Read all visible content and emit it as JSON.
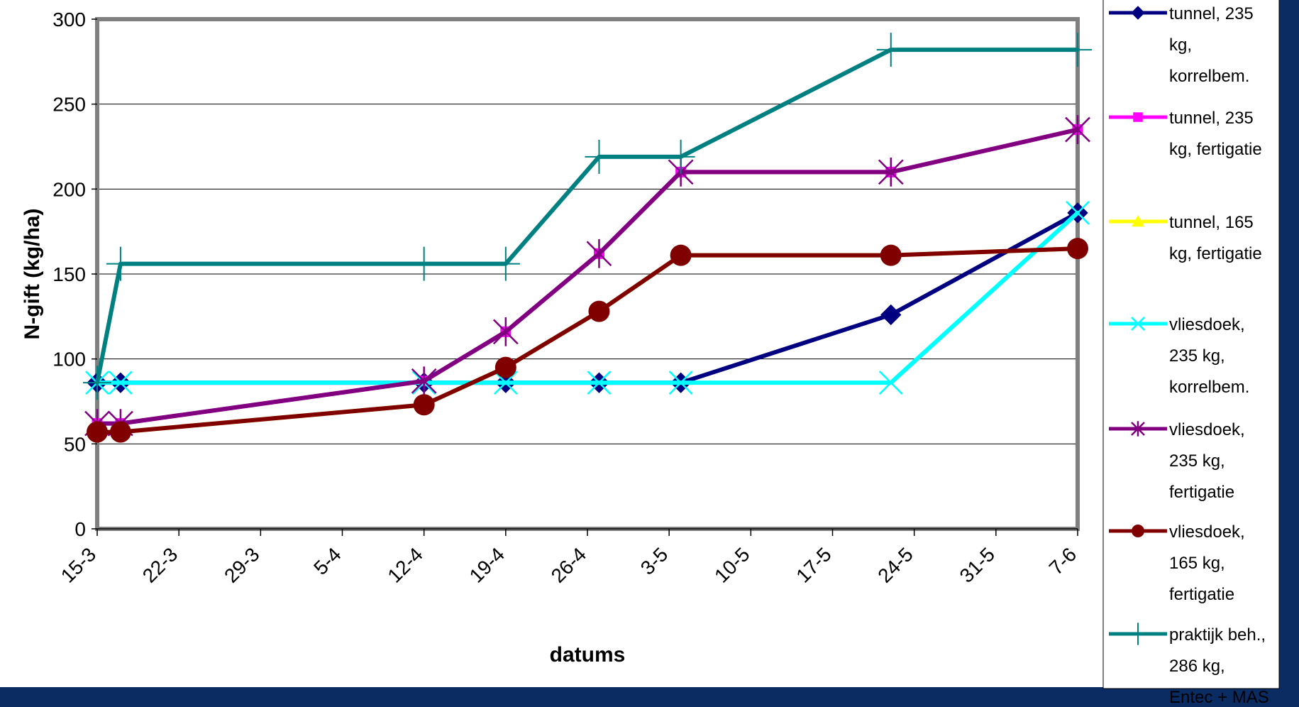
{
  "chart_data": {
    "type": "line",
    "xlabel": "datums",
    "ylabel": "N-gift (kg/ha)",
    "ylim": [
      0,
      300
    ],
    "yticks": [
      0,
      50,
      100,
      150,
      200,
      250,
      300
    ],
    "xlim": [
      "2003-03-15",
      "2003-06-07"
    ],
    "xtick_labels": [
      "15-3",
      "22-3",
      "29-3",
      "5-4",
      "12-4",
      "19-4",
      "26-4",
      "3-5",
      "10-5",
      "17-5",
      "24-5",
      "31-5",
      "7-6"
    ],
    "grid": "horizontal",
    "legend_position": "right",
    "series": [
      {
        "name": "tunnel, 235 kg, korrelbem.",
        "legend_lines": [
          "tunnel, 235",
          "kg,",
          "korrelbem."
        ],
        "color": "#000080",
        "marker": "diamond",
        "points": [
          [
            "15-3",
            86
          ],
          [
            "17-3",
            86
          ],
          [
            "12-4",
            86
          ],
          [
            "19-4",
            86
          ],
          [
            "27-4",
            86
          ],
          [
            "4-5",
            86
          ],
          [
            "22-5",
            126
          ],
          [
            "7-6",
            186
          ]
        ]
      },
      {
        "name": "tunnel, 235 kg, fertigatie",
        "legend_lines": [
          "tunnel, 235",
          "kg,  fertigatie"
        ],
        "color": "#FF00FF",
        "marker": "square",
        "points": [
          [
            "15-3",
            62
          ],
          [
            "17-3",
            62
          ],
          [
            "12-4",
            87
          ],
          [
            "19-4",
            116
          ],
          [
            "27-4",
            162
          ],
          [
            "4-5",
            210
          ],
          [
            "22-5",
            210
          ],
          [
            "7-6",
            235
          ]
        ]
      },
      {
        "name": "tunnel, 165 kg, fertigatie",
        "legend_lines": [
          "tunnel, 165",
          "kg,  fertigatie"
        ],
        "color": "#FFFF00",
        "marker": "triangle",
        "points": [
          [
            "15-3",
            57
          ],
          [
            "17-3",
            57
          ],
          [
            "12-4",
            73
          ],
          [
            "19-4",
            95
          ],
          [
            "27-4",
            128
          ],
          [
            "4-5",
            161
          ],
          [
            "22-5",
            161
          ],
          [
            "7-6",
            165
          ]
        ]
      },
      {
        "name": "vliesdoek, 235 kg, korrelbem.",
        "legend_lines": [
          "vliesdoek,",
          "235 kg,",
          "korrelbem."
        ],
        "color": "#00FFFF",
        "marker": "x",
        "points": [
          [
            "15-3",
            86
          ],
          [
            "17-3",
            86
          ],
          [
            "12-4",
            86
          ],
          [
            "19-4",
            86
          ],
          [
            "27-4",
            86
          ],
          [
            "4-5",
            86
          ],
          [
            "22-5",
            86
          ],
          [
            "7-6",
            186
          ]
        ]
      },
      {
        "name": "vliesdoek, 235 kg, fertigatie",
        "legend_lines": [
          "vliesdoek,",
          "235 kg,",
          "fertigatie"
        ],
        "color": "#800080",
        "marker": "star",
        "points": [
          [
            "15-3",
            62
          ],
          [
            "17-3",
            62
          ],
          [
            "12-4",
            87
          ],
          [
            "19-4",
            116
          ],
          [
            "27-4",
            162
          ],
          [
            "4-5",
            210
          ],
          [
            "22-5",
            210
          ],
          [
            "7-6",
            235
          ]
        ]
      },
      {
        "name": "vliesdoek, 165 kg, fertigatie",
        "legend_lines": [
          "vliesdoek,",
          "165 kg,",
          "fertigatie"
        ],
        "color": "#800000",
        "marker": "circle",
        "points": [
          [
            "15-3",
            57
          ],
          [
            "17-3",
            57
          ],
          [
            "12-4",
            73
          ],
          [
            "19-4",
            95
          ],
          [
            "27-4",
            128
          ],
          [
            "4-5",
            161
          ],
          [
            "22-5",
            161
          ],
          [
            "7-6",
            165
          ]
        ]
      },
      {
        "name": "praktijk beh., 286 kg, Entec + MAS",
        "legend_lines": [
          "praktijk beh.,",
          "286 kg,",
          "Entec + MAS"
        ],
        "color": "#008080",
        "marker": "plus",
        "points": [
          [
            "15-3",
            86
          ],
          [
            "17-3",
            156
          ],
          [
            "12-4",
            156
          ],
          [
            "19-4",
            156
          ],
          [
            "27-4",
            219
          ],
          [
            "4-5",
            219
          ],
          [
            "22-5",
            282
          ],
          [
            "7-6",
            282
          ]
        ]
      }
    ]
  }
}
